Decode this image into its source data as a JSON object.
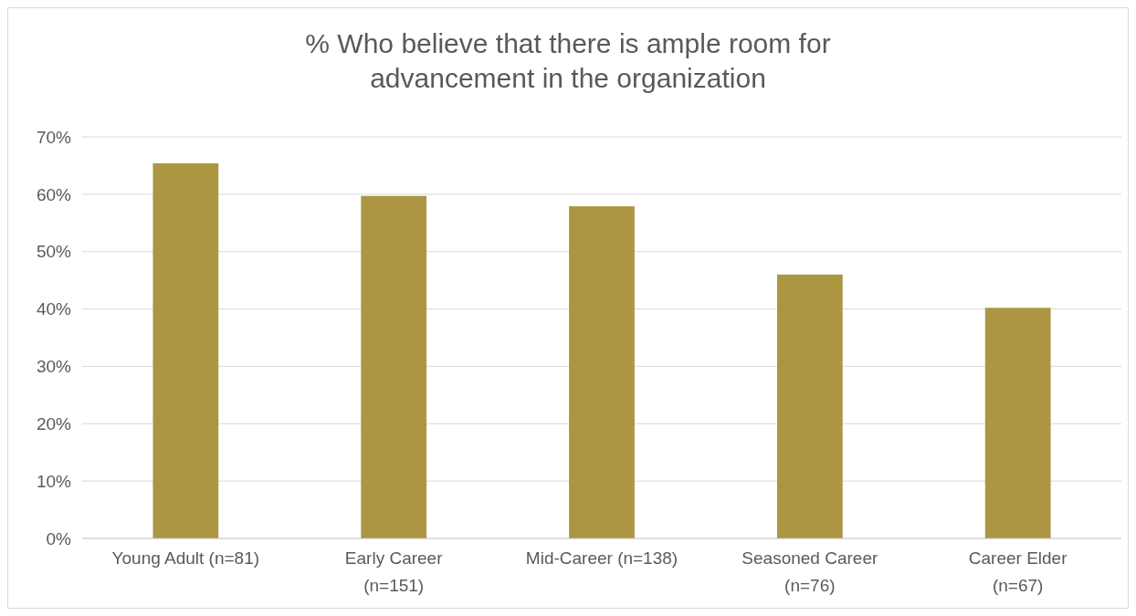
{
  "chart_data": {
    "type": "bar",
    "title": "% Who believe that there is ample room for advancement in the organization",
    "categories": [
      "Young Adult (n=81)",
      "Early Career (n=151)",
      "Mid-Career (n=138)",
      "Seasoned Career (n=76)",
      "Career Elder (n=67)"
    ],
    "values": [
      65.4,
      59.7,
      57.9,
      46.0,
      40.2
    ],
    "color": "#ad9641",
    "ylim": [
      0,
      70
    ],
    "yticks": [
      {
        "value": 0,
        "label": "0%"
      },
      {
        "value": 10,
        "label": "10%"
      },
      {
        "value": 20,
        "label": "20%"
      },
      {
        "value": 30,
        "label": "30%"
      },
      {
        "value": 40,
        "label": "40%"
      },
      {
        "value": 50,
        "label": "50%"
      },
      {
        "value": 60,
        "label": "60%"
      },
      {
        "value": 70,
        "label": "70%"
      }
    ],
    "grid": "y"
  }
}
